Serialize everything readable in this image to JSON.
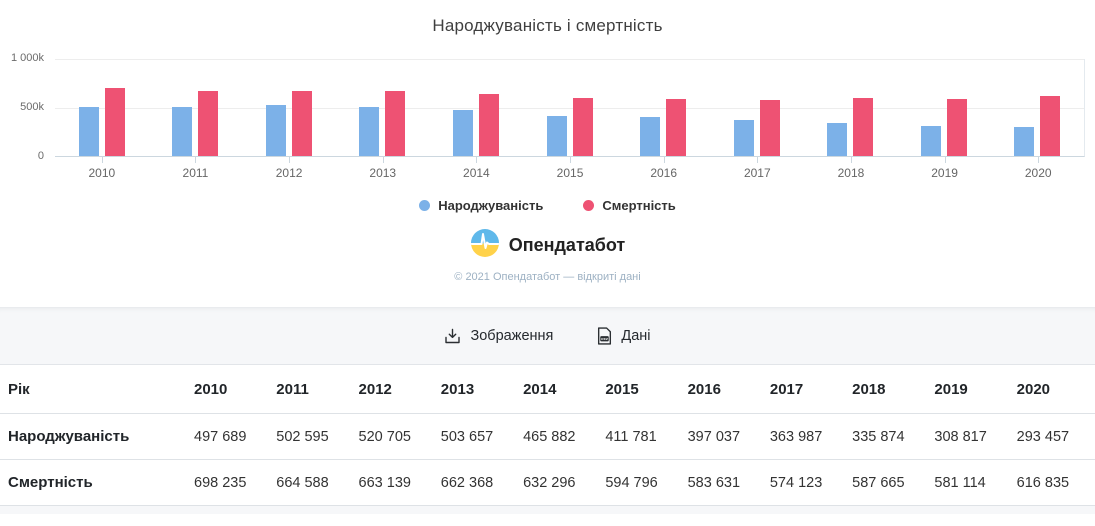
{
  "chart": {
    "title": "Народжуваність і смертність",
    "y_ticks": [
      "1 000k",
      "500k",
      "0"
    ],
    "legend": [
      {
        "label": "Народжуваність",
        "color": "#7CB1E8"
      },
      {
        "label": "Смертність",
        "color": "#EE5273"
      }
    ]
  },
  "chart_data": {
    "type": "bar",
    "title": "Народжуваність і смертність",
    "categories": [
      "2010",
      "2011",
      "2012",
      "2013",
      "2014",
      "2015",
      "2016",
      "2017",
      "2018",
      "2019",
      "2020"
    ],
    "series": [
      {
        "name": "Народжуваність",
        "color": "#7CB1E8",
        "values": [
          497689,
          502595,
          520705,
          503657,
          465882,
          411781,
          397037,
          363987,
          335874,
          308817,
          293457
        ]
      },
      {
        "name": "Смертність",
        "color": "#EE5273",
        "values": [
          698235,
          664588,
          663139,
          662368,
          632296,
          594796,
          583631,
          574123,
          587665,
          581114,
          616835
        ]
      }
    ],
    "xlabel": "",
    "ylabel": "",
    "ylim": [
      0,
      1000000
    ],
    "grid": true,
    "legend_position": "bottom"
  },
  "brand": {
    "name": "Опендатабот",
    "flag_blue": "#5fb8ea",
    "flag_yellow": "#ffd24a"
  },
  "copyright": "© 2021 Опендатабот — відкриті дані",
  "toolbar": {
    "image_button": "Зображення",
    "data_button": "Дані"
  },
  "table": {
    "header_label": "Рік",
    "years": [
      "2010",
      "2011",
      "2012",
      "2013",
      "2014",
      "2015",
      "2016",
      "2017",
      "2018",
      "2019",
      "2020"
    ],
    "rows": [
      {
        "label": "Народжуваність",
        "values": [
          "497 689",
          "502 595",
          "520 705",
          "503 657",
          "465 882",
          "411 781",
          "397 037",
          "363 987",
          "335 874",
          "308 817",
          "293 457"
        ]
      },
      {
        "label": "Смертність",
        "values": [
          "698 235",
          "664 588",
          "663 139",
          "662 368",
          "632 296",
          "594 796",
          "583 631",
          "574 123",
          "587 665",
          "581 114",
          "616 835"
        ]
      }
    ]
  }
}
